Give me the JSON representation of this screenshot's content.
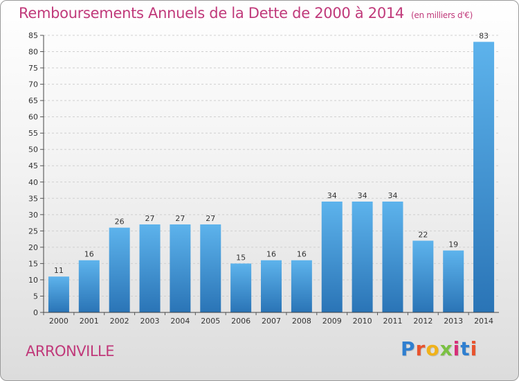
{
  "title": "Remboursements Annuels de la Dette de 2000 à 2014",
  "subtitle": "(en milliers d'€)",
  "location": "ARRONVILLE",
  "logo": {
    "letters": [
      "P",
      "r",
      "o",
      "x",
      "i",
      "t",
      "i"
    ],
    "colors": [
      "#2f7fd0",
      "#e8532d",
      "#f0b21a",
      "#7bc143",
      "#d62f78",
      "#2f7fd0",
      "#e8532d"
    ]
  },
  "colors": {
    "bar_light": "#5db3ec",
    "bar_dark": "#2a74b6",
    "title": "#c0397a"
  },
  "chart_data": {
    "type": "bar",
    "categories": [
      "2000",
      "2001",
      "2002",
      "2003",
      "2004",
      "2005",
      "2006",
      "2007",
      "2008",
      "2009",
      "2010",
      "2011",
      "2012",
      "2013",
      "2014"
    ],
    "values": [
      11,
      16,
      26,
      27,
      27,
      27,
      15,
      16,
      16,
      34,
      34,
      34,
      22,
      19,
      83
    ],
    "ylim": [
      0,
      85
    ],
    "yticks": [
      0,
      5,
      10,
      15,
      20,
      25,
      30,
      35,
      40,
      45,
      50,
      55,
      60,
      65,
      70,
      75,
      80,
      85
    ],
    "grid": true,
    "show_values": true
  }
}
